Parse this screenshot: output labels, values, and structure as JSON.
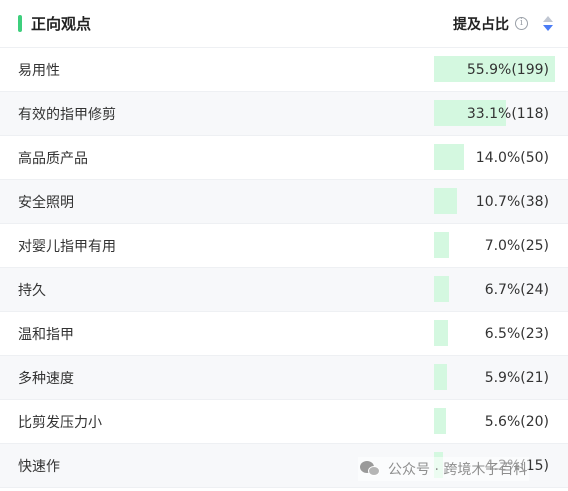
{
  "header": {
    "title": "正向观点",
    "column_label": "提及占比",
    "info_icon": "info-circle-icon",
    "sort_icon": "sort-icon",
    "sort_direction": "descending"
  },
  "colors": {
    "accent": "#3ecf7d",
    "bar_fill": "#d4f8e0",
    "sort_active": "#4a7cf6"
  },
  "rows": [
    {
      "label": "易用性",
      "value": "55.9%(199)",
      "share": 55.9
    },
    {
      "label": "有效的指甲修剪",
      "value": "33.1%(118)",
      "share": 33.1
    },
    {
      "label": "高品质产品",
      "value": "14.0%(50)",
      "share": 14.0
    },
    {
      "label": "安全照明",
      "value": "10.7%(38)",
      "share": 10.7
    },
    {
      "label": "对婴儿指甲有用",
      "value": "7.0%(25)",
      "share": 7.0
    },
    {
      "label": "持久",
      "value": "6.7%(24)",
      "share": 6.7
    },
    {
      "label": "温和指甲",
      "value": "6.5%(23)",
      "share": 6.5
    },
    {
      "label": "多种速度",
      "value": "5.9%(21)",
      "share": 5.9
    },
    {
      "label": "比剪发压力小",
      "value": "5.6%(20)",
      "share": 5.6
    },
    {
      "label": "快速作",
      "value": "4.2%(15)",
      "share": 4.2
    }
  ],
  "watermark": {
    "icon": "wechat-icon",
    "text": "公众号 · 跨境木子百科"
  }
}
